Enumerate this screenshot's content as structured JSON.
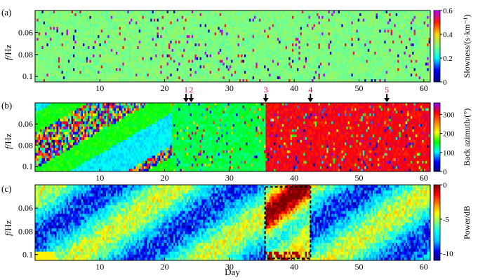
{
  "figure": {
    "xlabel": "Day",
    "x_tick_labels": [
      "10",
      "20",
      "30",
      "40",
      "50",
      "60"
    ],
    "y_tick_labels": [
      "0.06",
      "0.08",
      "0.1"
    ]
  },
  "event_markers": {
    "labels": [
      "1",
      "2",
      "3",
      "4",
      "5"
    ],
    "days": [
      23.3,
      24.1,
      35.6,
      42.5,
      54.3
    ],
    "color": "#e4002b",
    "arrow_color": "#000000"
  },
  "chart_data": [
    {
      "type": "heatmap",
      "panel_label": "(a)",
      "ylabel": "f/Hz",
      "colorbar_label": "Slowness/(s·km⁻¹)",
      "colorbar_ticks": [
        "0.6",
        "0.4",
        "0.2",
        "0"
      ],
      "colorbar_range": [
        0,
        0.6
      ],
      "x_range": [
        0,
        61
      ],
      "y_range": [
        0.04,
        0.105
      ],
      "y_ticks": [
        0.06,
        0.08,
        0.1
      ],
      "x_ticks": [
        10,
        20,
        30,
        40,
        50,
        60
      ],
      "colormap": [
        "#00007f",
        "#0000ff",
        "#00ffff",
        "#7fff7f",
        "#ffd400",
        "#ff2000",
        "#b000ff"
      ],
      "dominant_value": 0.3,
      "description_values": {
        "typical_slowness": 0.3,
        "occasional_high": 0.5,
        "occasional_low": 0.05
      }
    },
    {
      "type": "heatmap",
      "panel_label": "(b)",
      "ylabel": "f/Hz",
      "colorbar_label": "Back azimuth/(°)",
      "colorbar_ticks": [
        "300",
        "200",
        "100",
        "0"
      ],
      "colorbar_range": [
        0,
        360
      ],
      "x_range": [
        0,
        61
      ],
      "y_range": [
        0.04,
        0.105
      ],
      "y_ticks": [
        0.06,
        0.08,
        0.1
      ],
      "x_ticks": [
        10,
        20,
        30,
        40,
        50,
        60
      ],
      "colormap": [
        "#7f00ff",
        "#ff0000",
        "#ff7f00",
        "#ffff00",
        "#00ff00",
        "#00ffff",
        "#0000ff",
        "#00007f"
      ],
      "segments": [
        {
          "from_day": 0,
          "to_day": 21,
          "dominant_azimuth": 150,
          "note": "mixed"
        },
        {
          "from_day": 21,
          "to_day": 35.5,
          "dominant_azimuth": 140
        },
        {
          "from_day": 35.5,
          "to_day": 61,
          "dominant_azimuth": 310
        }
      ]
    },
    {
      "type": "heatmap",
      "panel_label": "(c)",
      "ylabel": "f/Hz",
      "colorbar_label": "Power/dB",
      "colorbar_ticks": [
        "0",
        "-5",
        "-10"
      ],
      "colorbar_range": [
        -11,
        0
      ],
      "x_range": [
        0,
        61
      ],
      "y_range": [
        0.04,
        0.105
      ],
      "y_ticks": [
        0.06,
        0.08,
        0.1
      ],
      "x_ticks": [
        10,
        20,
        30,
        40,
        50,
        60
      ],
      "colormap": [
        "#00007f",
        "#0000ff",
        "#00bfff",
        "#00ffff",
        "#7fff7f",
        "#ffff00",
        "#ff7f00",
        "#ff0000",
        "#7f0000"
      ],
      "highlight_box_days": [
        35.5,
        42.5
      ],
      "typical_power_db": -7
    }
  ]
}
